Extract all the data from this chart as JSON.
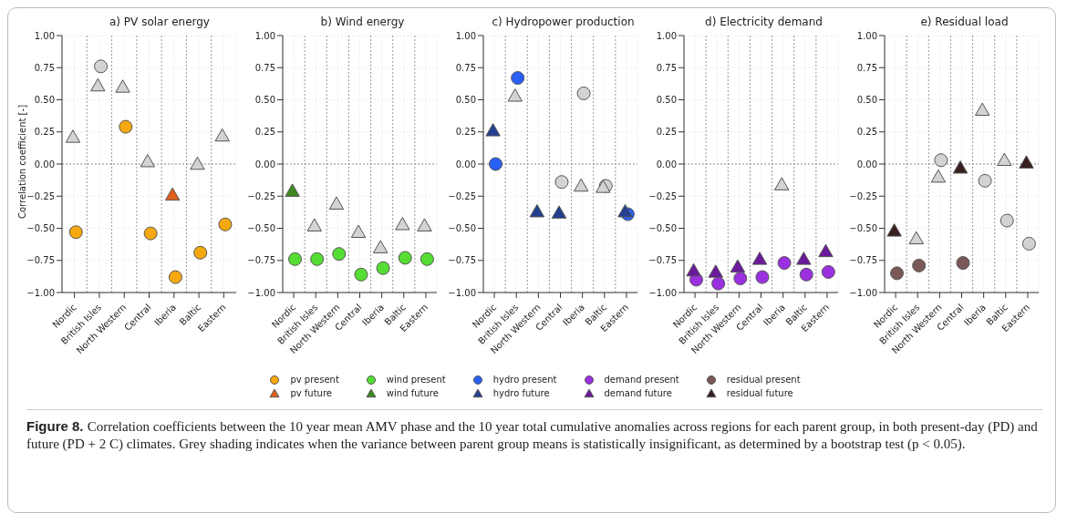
{
  "chart_data": [
    {
      "type": "scatter",
      "title": "a) PV solar energy",
      "ylabel": "Correlation coefficient [-]",
      "categories": [
        "Nordic",
        "British Isles",
        "North Western",
        "Central",
        "Iberia",
        "Baltic",
        "Eastern"
      ],
      "ylim": [
        -1,
        1
      ],
      "yticks": [
        {
          "value": -1,
          "label": "−1.00"
        },
        {
          "value": -0.75,
          "label": "−0.75"
        },
        {
          "value": -0.5,
          "label": "−0.50"
        },
        {
          "value": -0.25,
          "label": "−0.25"
        },
        {
          "value": 0,
          "label": "0.00"
        },
        {
          "value": 0.25,
          "label": "0.25"
        },
        {
          "value": 0.5,
          "label": "0.50"
        },
        {
          "value": 0.75,
          "label": "0.75"
        },
        {
          "value": 1,
          "label": "1.00"
        }
      ],
      "grid": true,
      "legend": "bottom",
      "ref_lines": [
        {
          "axis": "y",
          "value": 0,
          "line_style": "dotted"
        }
      ],
      "annotations": [
        "Figure 8.",
        "Correlation coefficients between the 10 year mean AMV phase and the 10 year total cumulative anomalies across regions for each parent group, in both present-day (PD) and future (PD + 2 C) climates. Grey shading indicates when the variance between parent group means is statistically insignificant, as determined by a bootstrap test (p < 0.05)."
      ],
      "series": [
        {
          "name": "pv present",
          "marker": "circle",
          "color": "#f5a80f",
          "values": [
            -0.53,
            0.76,
            0.29,
            -0.54,
            -0.88,
            -0.69,
            -0.47
          ],
          "colors": [
            "#f5a80f",
            "#d3d3d3",
            "#f5a80f",
            "#f5a80f",
            "#f5a80f",
            "#f5a80f",
            "#f5a80f"
          ]
        },
        {
          "name": "pv future",
          "marker": "triangle",
          "color": "#e0601a",
          "values": [
            0.21,
            0.61,
            0.6,
            0.02,
            -0.24,
            0.0,
            0.22
          ],
          "colors": [
            "#d3d3d3",
            "#d3d3d3",
            "#d3d3d3",
            "#d3d3d3",
            "#e0601a",
            "#d3d3d3",
            "#d3d3d3"
          ]
        }
      ]
    },
    {
      "type": "scatter",
      "title": "b) Wind energy",
      "categories": [
        "Nordic",
        "British Isles",
        "North Western",
        "Central",
        "Iberia",
        "Baltic",
        "Eastern"
      ],
      "ylim": [
        -1,
        1
      ],
      "yticks": [
        {
          "value": -1,
          "label": "−1.00"
        },
        {
          "value": -0.75,
          "label": "−0.75"
        },
        {
          "value": -0.5,
          "label": "−0.50"
        },
        {
          "value": -0.25,
          "label": "−0.25"
        },
        {
          "value": 0,
          "label": "0.00"
        },
        {
          "value": 0.25,
          "label": "0.25"
        },
        {
          "value": 0.5,
          "label": "0.50"
        },
        {
          "value": 0.75,
          "label": "0.75"
        },
        {
          "value": 1,
          "label": "1.00"
        }
      ],
      "grid": true,
      "legend": "bottom",
      "ref_lines": [
        {
          "axis": "y",
          "value": 0,
          "line_style": "dotted"
        }
      ],
      "series": [
        {
          "name": "wind present",
          "marker": "circle",
          "color": "#55dd33",
          "values": [
            -0.74,
            -0.74,
            -0.7,
            -0.86,
            -0.81,
            -0.73,
            -0.74
          ],
          "colors": [
            "#55dd33",
            "#55dd33",
            "#55dd33",
            "#55dd33",
            "#55dd33",
            "#55dd33",
            "#55dd33"
          ]
        },
        {
          "name": "wind future",
          "marker": "triangle",
          "color": "#3e8a20",
          "values": [
            -0.21,
            -0.48,
            -0.31,
            -0.53,
            -0.65,
            -0.47,
            -0.48
          ],
          "colors": [
            "#3e8a20",
            "#d3d3d3",
            "#d3d3d3",
            "#d3d3d3",
            "#d3d3d3",
            "#d3d3d3",
            "#d3d3d3"
          ]
        }
      ]
    },
    {
      "type": "scatter",
      "title": "c) Hydropower production",
      "categories": [
        "Nordic",
        "British Isles",
        "North Western",
        "Central",
        "Iberia",
        "Baltic",
        "Eastern"
      ],
      "ylim": [
        -1,
        1
      ],
      "yticks": [
        {
          "value": -1,
          "label": "−1.00"
        },
        {
          "value": -0.75,
          "label": "−0.75"
        },
        {
          "value": -0.5,
          "label": "−0.50"
        },
        {
          "value": -0.25,
          "label": "−0.25"
        },
        {
          "value": 0,
          "label": "0.00"
        },
        {
          "value": 0.25,
          "label": "0.25"
        },
        {
          "value": 0.5,
          "label": "0.50"
        },
        {
          "value": 0.75,
          "label": "0.75"
        },
        {
          "value": 1,
          "label": "1.00"
        }
      ],
      "grid": true,
      "legend": "bottom",
      "ref_lines": [
        {
          "axis": "y",
          "value": 0,
          "line_style": "dotted"
        }
      ],
      "series": [
        {
          "name": "hydro present",
          "marker": "circle",
          "color": "#2a5ff5",
          "values": [
            0.0,
            0.67,
            null,
            -0.14,
            0.55,
            -0.17,
            -0.39
          ],
          "colors": [
            "#2a5ff5",
            "#2a5ff5",
            null,
            "#d3d3d3",
            "#d3d3d3",
            "#d3d3d3",
            "#2a5ff5"
          ]
        },
        {
          "name": "hydro future",
          "marker": "triangle",
          "color": "#233f8f",
          "values": [
            0.26,
            0.53,
            -0.37,
            -0.38,
            -0.17,
            -0.18,
            -0.37
          ],
          "colors": [
            "#233f8f",
            "#d3d3d3",
            "#233f8f",
            "#233f8f",
            "#d3d3d3",
            "#d3d3d3",
            "#233f8f"
          ]
        }
      ]
    },
    {
      "type": "scatter",
      "title": "d) Electricity demand",
      "categories": [
        "Nordic",
        "British Isles",
        "North Western",
        "Central",
        "Iberia",
        "Baltic",
        "Eastern"
      ],
      "ylim": [
        -1,
        1
      ],
      "yticks": [
        {
          "value": -1,
          "label": "−1.00"
        },
        {
          "value": -0.75,
          "label": "−0.75"
        },
        {
          "value": -0.5,
          "label": "−0.50"
        },
        {
          "value": -0.25,
          "label": "−0.25"
        },
        {
          "value": 0,
          "label": "0.00"
        },
        {
          "value": 0.25,
          "label": "0.25"
        },
        {
          "value": 0.5,
          "label": "0.50"
        },
        {
          "value": 0.75,
          "label": "0.75"
        },
        {
          "value": 1,
          "label": "1.00"
        }
      ],
      "grid": true,
      "legend": "bottom",
      "ref_lines": [
        {
          "axis": "y",
          "value": 0,
          "line_style": "dotted"
        }
      ],
      "series": [
        {
          "name": "demand present",
          "marker": "circle",
          "color": "#9b30e0",
          "values": [
            -0.9,
            -0.93,
            -0.89,
            -0.88,
            -0.77,
            -0.86,
            -0.84
          ],
          "colors": [
            "#9b30e0",
            "#9b30e0",
            "#9b30e0",
            "#9b30e0",
            "#9b30e0",
            "#9b30e0",
            "#9b30e0"
          ]
        },
        {
          "name": "demand future",
          "marker": "triangle",
          "color": "#6a1a9a",
          "values": [
            -0.83,
            -0.84,
            -0.8,
            -0.74,
            -0.16,
            -0.74,
            -0.68
          ],
          "colors": [
            "#6a1a9a",
            "#6a1a9a",
            "#6a1a9a",
            "#6a1a9a",
            "#d3d3d3",
            "#6a1a9a",
            "#6a1a9a"
          ]
        }
      ]
    },
    {
      "type": "scatter",
      "title": "e) Residual load",
      "categories": [
        "Nordic",
        "British Isles",
        "North Western",
        "Central",
        "Iberia",
        "Baltic",
        "Eastern"
      ],
      "ylim": [
        -1,
        1
      ],
      "yticks": [
        {
          "value": -1,
          "label": "−1.00"
        },
        {
          "value": -0.75,
          "label": "−0.75"
        },
        {
          "value": -0.5,
          "label": "−0.50"
        },
        {
          "value": -0.25,
          "label": "−0.25"
        },
        {
          "value": 0,
          "label": "0.00"
        },
        {
          "value": 0.25,
          "label": "0.25"
        },
        {
          "value": 0.5,
          "label": "0.50"
        },
        {
          "value": 0.75,
          "label": "0.75"
        },
        {
          "value": 1,
          "label": "1.00"
        }
      ],
      "grid": true,
      "legend": "bottom",
      "ref_lines": [
        {
          "axis": "y",
          "value": 0,
          "line_style": "dotted"
        }
      ],
      "series": [
        {
          "name": "residual present",
          "marker": "circle",
          "color": "#7a5858",
          "values": [
            -0.85,
            -0.79,
            0.03,
            -0.77,
            -0.13,
            -0.44,
            -0.62
          ],
          "colors": [
            "#7a5858",
            "#7a5858",
            "#d3d3d3",
            "#7a5858",
            "#d3d3d3",
            "#d3d3d3",
            "#d3d3d3"
          ]
        },
        {
          "name": "residual future",
          "marker": "triangle",
          "color": "#3a1f1f",
          "values": [
            -0.52,
            -0.58,
            -0.1,
            -0.03,
            0.42,
            0.03,
            0.01
          ],
          "colors": [
            "#3a1f1f",
            "#d3d3d3",
            "#d3d3d3",
            "#3a1f1f",
            "#d3d3d3",
            "#d3d3d3",
            "#3a1f1f"
          ]
        }
      ]
    }
  ]
}
